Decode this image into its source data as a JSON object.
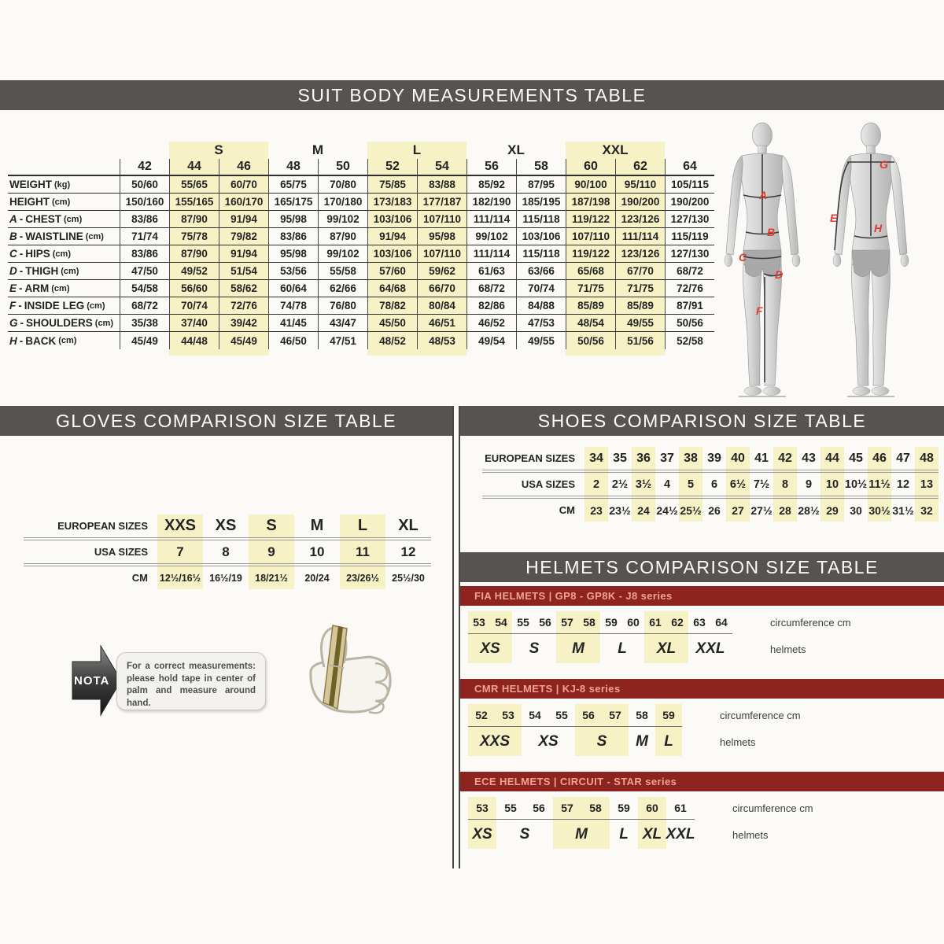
{
  "colors": {
    "highlight": "#f6f2c5",
    "bar_bg": "#575350",
    "bar_text": "#ffffff",
    "red_bar_bg": "#8d2420",
    "red_bar_text": "#f0a293",
    "letter_red": "#e03a2c"
  },
  "suit": {
    "title": "SUIT BODY MEASUREMENTS TABLE",
    "separator": "-",
    "sizes": [
      "42",
      "44",
      "46",
      "48",
      "50",
      "52",
      "54",
      "56",
      "58",
      "60",
      "62",
      "64"
    ],
    "size_groups": [
      {
        "label": "",
        "span": 1,
        "highlight": false
      },
      {
        "label": "S",
        "span": 2,
        "highlight": true
      },
      {
        "label": "M",
        "span": 2,
        "highlight": false
      },
      {
        "label": "L",
        "span": 2,
        "highlight": true
      },
      {
        "label": "XL",
        "span": 2,
        "highlight": false
      },
      {
        "label": "XXL",
        "span": 2,
        "highlight": true
      },
      {
        "label": "",
        "span": 1,
        "highlight": false
      }
    ],
    "highlight_cols": [
      1,
      2,
      5,
      6,
      9,
      10
    ],
    "rows": [
      {
        "letter": "",
        "name": "WEIGHT",
        "unit": "(kg)",
        "values": [
          "50/60",
          "55/65",
          "60/70",
          "65/75",
          "70/80",
          "75/85",
          "83/88",
          "85/92",
          "87/95",
          "90/100",
          "95/110",
          "105/115"
        ]
      },
      {
        "letter": "",
        "name": "HEIGHT",
        "unit": "(cm)",
        "values": [
          "150/160",
          "155/165",
          "160/170",
          "165/175",
          "170/180",
          "173/183",
          "177/187",
          "182/190",
          "185/195",
          "187/198",
          "190/200",
          "190/200"
        ]
      },
      {
        "letter": "A",
        "name": "CHEST",
        "unit": "(cm)",
        "values": [
          "83/86",
          "87/90",
          "91/94",
          "95/98",
          "99/102",
          "103/106",
          "107/110",
          "111/114",
          "115/118",
          "119/122",
          "123/126",
          "127/130"
        ]
      },
      {
        "letter": "B",
        "name": "WAISTLINE",
        "unit": "(cm)",
        "values": [
          "71/74",
          "75/78",
          "79/82",
          "83/86",
          "87/90",
          "91/94",
          "95/98",
          "99/102",
          "103/106",
          "107/110",
          "111/114",
          "115/119"
        ]
      },
      {
        "letter": "C",
        "name": "HIPS",
        "unit": "(cm)",
        "values": [
          "83/86",
          "87/90",
          "91/94",
          "95/98",
          "99/102",
          "103/106",
          "107/110",
          "111/114",
          "115/118",
          "119/122",
          "123/126",
          "127/130"
        ]
      },
      {
        "letter": "D",
        "name": "THIGH",
        "unit": "(cm)",
        "values": [
          "47/50",
          "49/52",
          "51/54",
          "53/56",
          "55/58",
          "57/60",
          "59/62",
          "61/63",
          "63/66",
          "65/68",
          "67/70",
          "68/72"
        ]
      },
      {
        "letter": "E",
        "name": "ARM",
        "unit": "(cm)",
        "values": [
          "54/58",
          "56/60",
          "58/62",
          "60/64",
          "62/66",
          "64/68",
          "66/70",
          "68/72",
          "70/74",
          "71/75",
          "71/75",
          "72/76"
        ]
      },
      {
        "letter": "F",
        "name": "INSIDE LEG",
        "unit": "(cm)",
        "values": [
          "68/72",
          "70/74",
          "72/76",
          "74/78",
          "76/80",
          "78/82",
          "80/84",
          "82/86",
          "84/88",
          "85/89",
          "85/89",
          "87/91"
        ]
      },
      {
        "letter": "G",
        "name": "SHOULDERS",
        "unit": "(cm)",
        "values": [
          "35/38",
          "37/40",
          "39/42",
          "41/45",
          "43/47",
          "45/50",
          "46/51",
          "46/52",
          "47/53",
          "48/54",
          "49/55",
          "50/56"
        ]
      },
      {
        "letter": "H",
        "name": "BACK",
        "unit": "(cm)",
        "values": [
          "45/49",
          "44/48",
          "45/49",
          "46/50",
          "47/51",
          "48/52",
          "48/53",
          "49/54",
          "49/55",
          "50/56",
          "51/56",
          "52/58"
        ]
      }
    ],
    "figure_letters": {
      "front": [
        "A",
        "B",
        "C",
        "D",
        "F"
      ],
      "back": [
        "G",
        "E",
        "H"
      ]
    }
  },
  "gloves": {
    "title": "GLOVES COMPARISON SIZE TABLE",
    "highlight_cols": [
      0,
      2,
      4
    ],
    "rows": [
      {
        "label": "EUROPEAN SIZES",
        "values": [
          "XXS",
          "XS",
          "S",
          "M",
          "L",
          "XL"
        ]
      },
      {
        "label": "USA SIZES",
        "values": [
          "7",
          "8",
          "9",
          "10",
          "11",
          "12"
        ]
      },
      {
        "label": "CM",
        "values": [
          "12½/16½",
          "16½/19",
          "18/21½",
          "20/24",
          "23/26½",
          "25½/30"
        ]
      }
    ],
    "note_label": "NOTA",
    "note_text": "For a correct measurements: please hold tape in center of palm and measure around hand."
  },
  "shoes": {
    "title": "SHOES COMPARISON SIZE TABLE",
    "highlight_cols": [
      0,
      2,
      4,
      6,
      8,
      10,
      12,
      14
    ],
    "rows": [
      {
        "label": "EUROPEAN SIZES",
        "values": [
          "34",
          "35",
          "36",
          "37",
          "38",
          "39",
          "40",
          "41",
          "42",
          "43",
          "44",
          "45",
          "46",
          "47",
          "48"
        ]
      },
      {
        "label": "USA SIZES",
        "values": [
          "2",
          "2½",
          "3½",
          "4",
          "5",
          "6",
          "6½",
          "7½",
          "8",
          "9",
          "10",
          "10½",
          "11½",
          "12",
          "13"
        ]
      },
      {
        "label": "CM",
        "values": [
          "23",
          "23½",
          "24",
          "24½",
          "25½",
          "26",
          "27",
          "27½",
          "28",
          "28½",
          "29",
          "30",
          "30½",
          "31½",
          "32"
        ]
      }
    ]
  },
  "helmets": {
    "title": "HELMETS COMPARISON SIZE TABLE",
    "col_labels": {
      "circumference": "circumference cm",
      "sizes": "helmets"
    },
    "tables": [
      {
        "series": "FIA HELMETS  |  GP8 - GP8K - J8 series",
        "circumference": [
          "53",
          "54",
          "55",
          "56",
          "57",
          "58",
          "59",
          "60",
          "61",
          "62",
          "63",
          "64"
        ],
        "sizes": [
          {
            "label": "XS",
            "span": 2,
            "highlight": true
          },
          {
            "label": "S",
            "span": 2,
            "highlight": false
          },
          {
            "label": "M",
            "span": 2,
            "highlight": true
          },
          {
            "label": "L",
            "span": 2,
            "highlight": false
          },
          {
            "label": "XL",
            "span": 2,
            "highlight": true
          },
          {
            "label": "XXL",
            "span": 2,
            "highlight": false
          }
        ]
      },
      {
        "series": "CMR HELMETS  |  KJ-8 series",
        "circumference": [
          "52",
          "53",
          "54",
          "55",
          "56",
          "57",
          "58",
          "59"
        ],
        "sizes": [
          {
            "label": "XXS",
            "span": 2,
            "highlight": true
          },
          {
            "label": "XS",
            "span": 2,
            "highlight": false
          },
          {
            "label": "S",
            "span": 2,
            "highlight": true
          },
          {
            "label": "M",
            "span": 1,
            "highlight": false
          },
          {
            "label": "L",
            "span": 1,
            "highlight": true
          }
        ]
      },
      {
        "series": "ECE HELMETS  |  CIRCUIT - STAR series",
        "circumference": [
          "53",
          "55",
          "56",
          "57",
          "58",
          "59",
          "60",
          "61"
        ],
        "sizes": [
          {
            "label": "XS",
            "span": 1,
            "highlight": true
          },
          {
            "label": "S",
            "span": 2,
            "highlight": false
          },
          {
            "label": "M",
            "span": 2,
            "highlight": true
          },
          {
            "label": "L",
            "span": 1,
            "highlight": false
          },
          {
            "label": "XL",
            "span": 1,
            "highlight": true
          },
          {
            "label": "XXL",
            "span": 1,
            "highlight": false
          }
        ]
      }
    ]
  }
}
